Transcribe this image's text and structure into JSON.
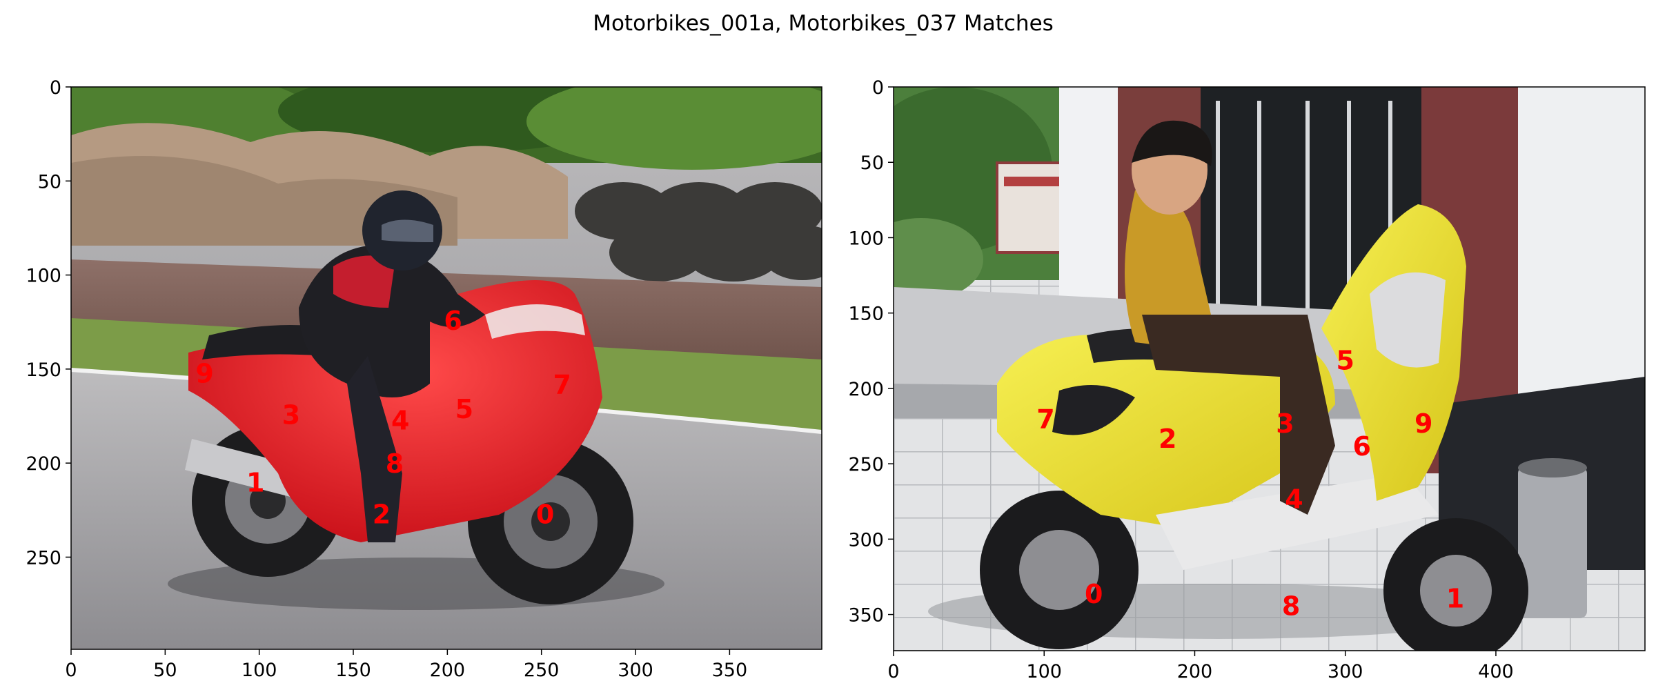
{
  "figure": {
    "title": "Motorbikes_001a, Motorbikes_037 Matches",
    "marker_color": "#ff0000"
  },
  "chart_data": [
    {
      "type": "scatter",
      "image": "Motorbikes_001a",
      "xlim": [
        0,
        399
      ],
      "ylim": [
        299,
        0
      ],
      "xticks": [
        0,
        50,
        100,
        150,
        200,
        250,
        300,
        350
      ],
      "yticks": [
        0,
        50,
        100,
        150,
        200,
        250
      ],
      "grid": false,
      "points": [
        {
          "label": "0",
          "x": 252,
          "y": 227
        },
        {
          "label": "1",
          "x": 98,
          "y": 210
        },
        {
          "label": "2",
          "x": 165,
          "y": 227
        },
        {
          "label": "3",
          "x": 117,
          "y": 174
        },
        {
          "label": "4",
          "x": 175,
          "y": 177
        },
        {
          "label": "5",
          "x": 209,
          "y": 171
        },
        {
          "label": "6",
          "x": 203,
          "y": 124
        },
        {
          "label": "7",
          "x": 261,
          "y": 158
        },
        {
          "label": "8",
          "x": 172,
          "y": 200
        },
        {
          "label": "9",
          "x": 71,
          "y": 152
        }
      ]
    },
    {
      "type": "scatter",
      "image": "Motorbikes_037",
      "xlim": [
        0,
        499
      ],
      "ylim": [
        374,
        0
      ],
      "xticks": [
        0,
        100,
        200,
        300,
        400
      ],
      "yticks": [
        0,
        50,
        100,
        150,
        200,
        250,
        300,
        350
      ],
      "grid": false,
      "points": [
        {
          "label": "0",
          "x": 133,
          "y": 336
        },
        {
          "label": "1",
          "x": 373,
          "y": 339
        },
        {
          "label": "2",
          "x": 182,
          "y": 233
        },
        {
          "label": "3",
          "x": 260,
          "y": 223
        },
        {
          "label": "4",
          "x": 266,
          "y": 273
        },
        {
          "label": "5",
          "x": 300,
          "y": 181
        },
        {
          "label": "6",
          "x": 311,
          "y": 238
        },
        {
          "label": "7",
          "x": 101,
          "y": 220
        },
        {
          "label": "8",
          "x": 264,
          "y": 344
        },
        {
          "label": "9",
          "x": 352,
          "y": 223
        }
      ]
    }
  ]
}
